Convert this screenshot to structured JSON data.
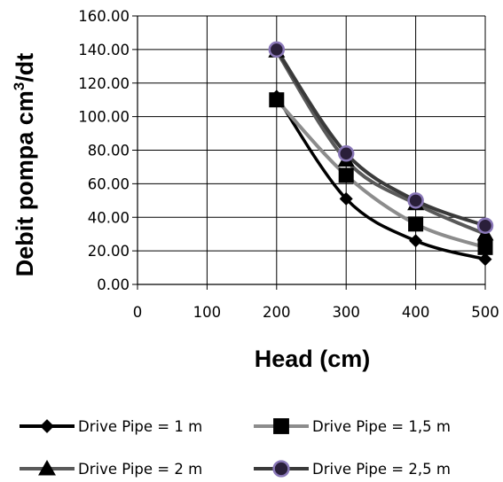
{
  "chart_data": {
    "type": "line",
    "title": "",
    "xlabel": "Head (cm)",
    "ylabel_main": "Debit pompa cm",
    "ylabel_sup": "3",
    "ylabel_tail": "/dt",
    "xlim": [
      0,
      500
    ],
    "ylim": [
      0,
      160
    ],
    "x_ticks": [
      "0",
      "100",
      "200",
      "300",
      "400",
      "500"
    ],
    "y_ticks": [
      "0.00",
      "20.00",
      "40.00",
      "60.00",
      "80.00",
      "100.00",
      "120.00",
      "140.00",
      "160.00"
    ],
    "grid": true,
    "legend_position": "bottom",
    "x": [
      200,
      300,
      400,
      500
    ],
    "series": [
      {
        "name": "Drive Pipe = 1 m",
        "values": [
          112,
          51,
          26,
          15
        ],
        "color": "#000000",
        "marker": "diamond"
      },
      {
        "name": "Drive Pipe = 1,5 m",
        "values": [
          110,
          65,
          36,
          22
        ],
        "color": "#8c8c8c",
        "marker": "square"
      },
      {
        "name": "Drive Pipe = 2 m",
        "values": [
          139,
          74,
          48,
          30
        ],
        "color": "#5a5a5a",
        "marker": "triangle"
      },
      {
        "name": "Drive Pipe = 2,5 m",
        "values": [
          140,
          78,
          50,
          35
        ],
        "color": "#3a3a3a",
        "marker": "circle"
      }
    ],
    "marker_colors": {
      "square": "#000000",
      "circle_fill": "#2a1f3a",
      "circle_stroke": "#8a78b8"
    }
  }
}
